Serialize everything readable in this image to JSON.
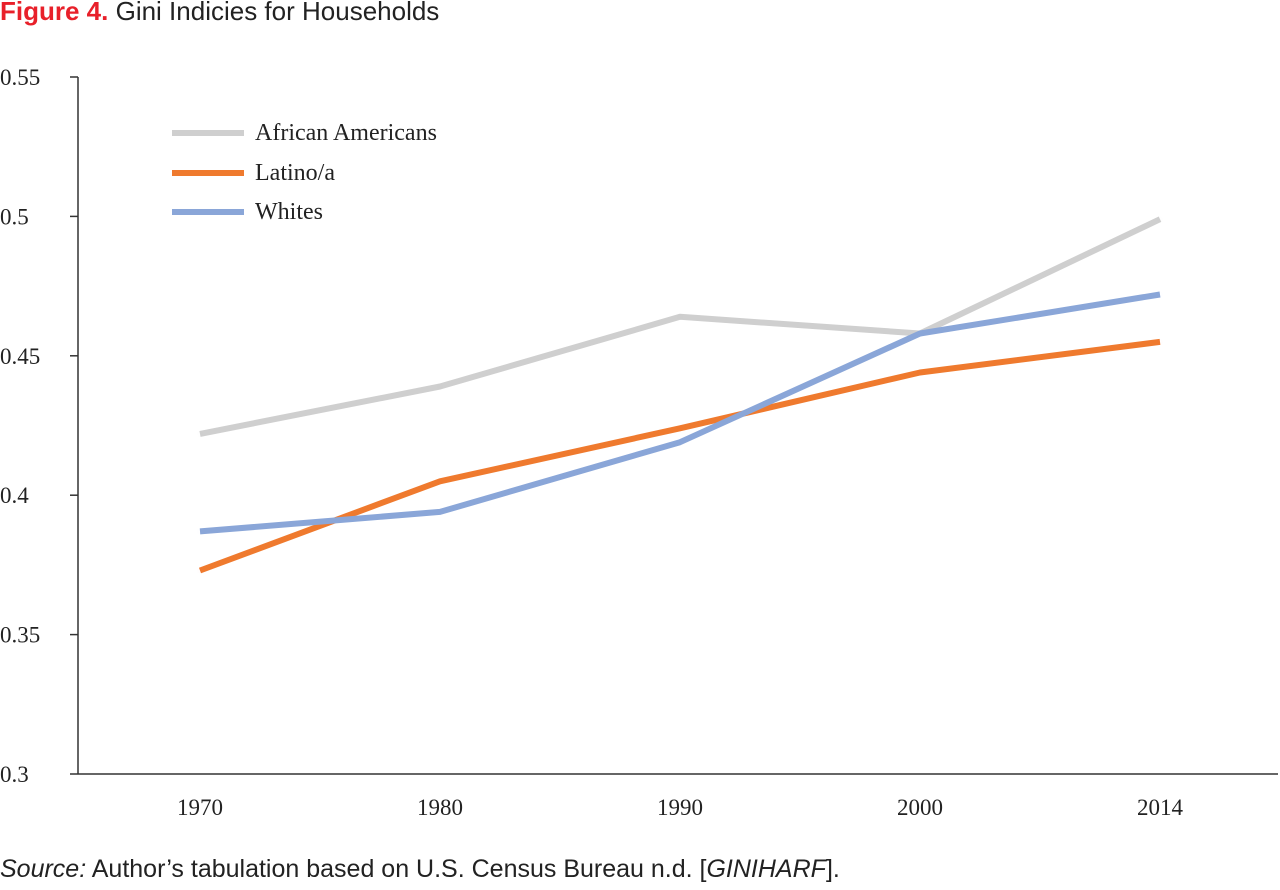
{
  "figure": {
    "number_label": "Figure 4.",
    "title": "Gini Indicies for Households",
    "source_prefix": "Source:",
    "source_body": " Author’s tabulation based on U.S. Census Bureau n.d. [",
    "source_dataset": "GINIHARF",
    "source_suffix": "]."
  },
  "chart_data": {
    "type": "line",
    "title": "Gini Indicies for Households",
    "xlabel": "",
    "ylabel": "",
    "categories": [
      "1970",
      "1980",
      "1990",
      "2000",
      "2014"
    ],
    "ylim": [
      0.3,
      0.55
    ],
    "yticks": [
      "0.3",
      "0.35",
      "0.4",
      "0.45",
      "0.5",
      "0.55"
    ],
    "grid": false,
    "legend_position": "top-left",
    "series": [
      {
        "name": "African Americans",
        "color": "#cfcfcf",
        "values": [
          0.422,
          0.439,
          0.464,
          0.458,
          0.499
        ]
      },
      {
        "name": "Latino/a",
        "color": "#ef7a2e",
        "values": [
          0.373,
          0.405,
          0.424,
          0.444,
          0.455
        ]
      },
      {
        "name": "Whites",
        "color": "#8aa6d8",
        "values": [
          0.387,
          0.394,
          0.419,
          0.458,
          0.472
        ]
      }
    ]
  }
}
